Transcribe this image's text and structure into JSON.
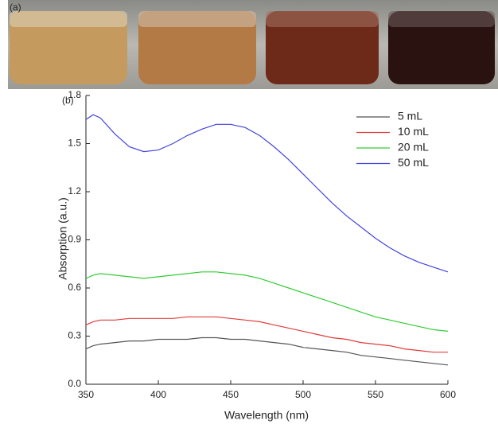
{
  "panel_a": {
    "label": "(a)"
  },
  "chart_data": {
    "type": "line",
    "panel_label": "(b)",
    "xlabel": "Wavelength (nm)",
    "ylabel": "Absorption (a.u.)",
    "x": [
      350,
      355,
      360,
      370,
      380,
      390,
      400,
      410,
      420,
      430,
      440,
      450,
      460,
      470,
      480,
      490,
      500,
      510,
      520,
      530,
      540,
      550,
      560,
      570,
      580,
      590,
      600
    ],
    "xlim": [
      350,
      600
    ],
    "xticks": [
      350,
      400,
      450,
      500,
      550,
      600
    ],
    "ylim": [
      0,
      1.8
    ],
    "yticks": [
      {
        "value": 0,
        "label": "0.0"
      },
      0.3,
      0.6,
      0.9,
      1.2,
      1.5,
      1.8
    ],
    "legend": "upper right",
    "series": [
      {
        "name": "5 mL",
        "color": "#555555",
        "values": [
          0.22,
          0.24,
          0.25,
          0.26,
          0.27,
          0.27,
          0.28,
          0.28,
          0.28,
          0.29,
          0.29,
          0.28,
          0.28,
          0.27,
          0.26,
          0.25,
          0.23,
          0.22,
          0.21,
          0.2,
          0.18,
          0.17,
          0.16,
          0.15,
          0.14,
          0.13,
          0.12
        ]
      },
      {
        "name": "10 mL",
        "color": "#e03c3c",
        "values": [
          0.37,
          0.39,
          0.4,
          0.4,
          0.41,
          0.41,
          0.41,
          0.41,
          0.42,
          0.42,
          0.42,
          0.41,
          0.4,
          0.39,
          0.37,
          0.35,
          0.33,
          0.31,
          0.29,
          0.28,
          0.26,
          0.25,
          0.24,
          0.22,
          0.21,
          0.2,
          0.2
        ]
      },
      {
        "name": "20 mL",
        "color": "#33cc33",
        "values": [
          0.66,
          0.68,
          0.69,
          0.68,
          0.67,
          0.66,
          0.67,
          0.68,
          0.69,
          0.7,
          0.7,
          0.69,
          0.68,
          0.66,
          0.63,
          0.6,
          0.57,
          0.54,
          0.51,
          0.48,
          0.45,
          0.42,
          0.4,
          0.38,
          0.36,
          0.34,
          0.33
        ]
      },
      {
        "name": "50 mL",
        "color": "#4444dd",
        "values": [
          1.65,
          1.68,
          1.66,
          1.56,
          1.48,
          1.45,
          1.46,
          1.5,
          1.55,
          1.59,
          1.62,
          1.62,
          1.6,
          1.55,
          1.48,
          1.4,
          1.31,
          1.22,
          1.13,
          1.05,
          0.98,
          0.91,
          0.85,
          0.8,
          0.76,
          0.73,
          0.7
        ]
      }
    ]
  }
}
